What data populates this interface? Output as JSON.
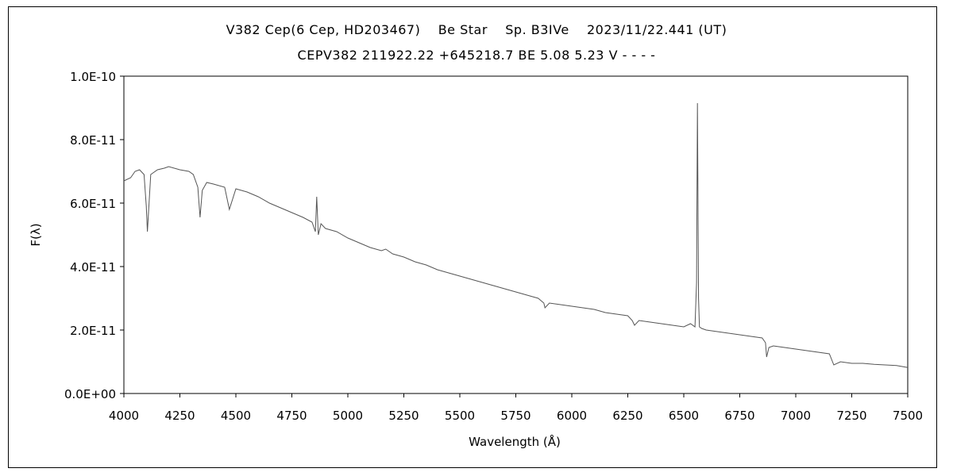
{
  "chart_data": {
    "type": "line",
    "title": "V382 Cep(6 Cep, HD203467)    Be Star    Sp. B3IVe    2023/11/22.441 (UT)",
    "subtitle": "CEPV382 211922.22 +645218.7 BE 5.08 5.23 V - - - -",
    "xlabel": "Wavelength (Å)",
    "ylabel": "F(λ)",
    "xlim": [
      4000,
      7500
    ],
    "ylim": [
      0,
      1e-10
    ],
    "x_ticks": [
      "4000",
      "4250",
      "4500",
      "4750",
      "5000",
      "5250",
      "5500",
      "5750",
      "6000",
      "6250",
      "6500",
      "6750",
      "7000",
      "7250",
      "7500"
    ],
    "y_ticks": [
      "0.0E+00",
      "2.0E-11",
      "4.0E-11",
      "6.0E-11",
      "8.0E-11",
      "1.0E-10"
    ],
    "grid": false,
    "legend": "none",
    "series": [
      {
        "x": [
          4000,
          4030,
          4050,
          4070,
          4090,
          4100,
          4105,
          4120,
          4150,
          4180,
          4200,
          4250,
          4290,
          4310,
          4330,
          4340,
          4350,
          4370,
          4400,
          4450,
          4471,
          4500,
          4550,
          4600,
          4650,
          4700,
          4750,
          4800,
          4840,
          4855,
          4861,
          4868,
          4880,
          4900,
          4950,
          5000,
          5050,
          5100,
          5150,
          5169,
          5200,
          5250,
          5300,
          5350,
          5400,
          5450,
          5500,
          5550,
          5600,
          5650,
          5700,
          5750,
          5800,
          5850,
          5875,
          5880,
          5900,
          5950,
          6000,
          6050,
          6100,
          6150,
          6200,
          6250,
          6270,
          6280,
          6300,
          6350,
          6400,
          6450,
          6500,
          6530,
          6550,
          6557,
          6561,
          6563,
          6566,
          6570,
          6580,
          6600,
          6650,
          6700,
          6750,
          6800,
          6850,
          6865,
          6870,
          6880,
          6900,
          6950,
          7000,
          7050,
          7150,
          7170,
          7200,
          7250,
          7300,
          7350,
          7400,
          7450,
          7500
        ],
        "y": [
          6.7e-11,
          6.8e-11,
          7e-11,
          7.05e-11,
          6.9e-11,
          5.9e-11,
          5.1e-11,
          6.9e-11,
          7.05e-11,
          7.1e-11,
          7.15e-11,
          7.05e-11,
          7e-11,
          6.9e-11,
          6.5e-11,
          5.55e-11,
          6.4e-11,
          6.65e-11,
          6.6e-11,
          6.5e-11,
          5.8e-11,
          6.45e-11,
          6.35e-11,
          6.2e-11,
          6e-11,
          5.85e-11,
          5.7e-11,
          5.55e-11,
          5.4e-11,
          5.1e-11,
          6.2e-11,
          5e-11,
          5.35e-11,
          5.2e-11,
          5.1e-11,
          4.9e-11,
          4.75e-11,
          4.6e-11,
          4.5e-11,
          4.55e-11,
          4.4e-11,
          4.3e-11,
          4.15e-11,
          4.05e-11,
          3.9e-11,
          3.8e-11,
          3.7e-11,
          3.6e-11,
          3.5e-11,
          3.4e-11,
          3.3e-11,
          3.2e-11,
          3.1e-11,
          3e-11,
          2.85e-11,
          2.7e-11,
          2.85e-11,
          2.8e-11,
          2.75e-11,
          2.7e-11,
          2.65e-11,
          2.55e-11,
          2.5e-11,
          2.45e-11,
          2.3e-11,
          2.15e-11,
          2.3e-11,
          2.25e-11,
          2.2e-11,
          2.15e-11,
          2.1e-11,
          2.2e-11,
          2.1e-11,
          3.5e-11,
          9.15e-11,
          6.5e-11,
          3e-11,
          2.1e-11,
          2.05e-11,
          2e-11,
          1.95e-11,
          1.9e-11,
          1.85e-11,
          1.8e-11,
          1.75e-11,
          1.6e-11,
          1.15e-11,
          1.45e-11,
          1.5e-11,
          1.45e-11,
          1.4e-11,
          1.35e-11,
          1.25e-11,
          9e-12,
          1e-11,
          9.5e-12,
          9.5e-12,
          9.2e-12,
          9e-12,
          8.8e-12,
          8.2e-12
        ]
      }
    ]
  }
}
